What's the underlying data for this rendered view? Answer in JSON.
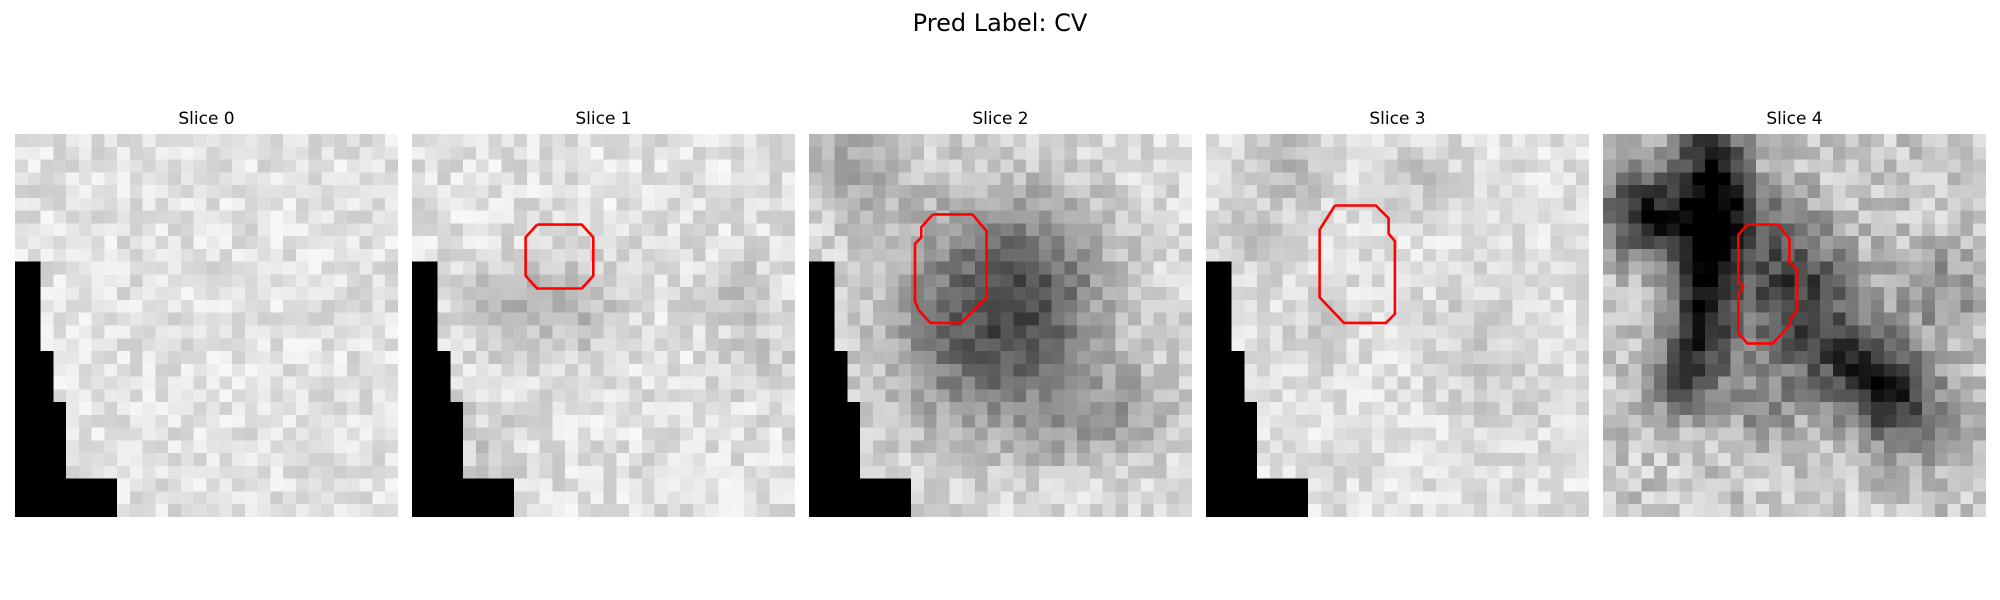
{
  "figure": {
    "title": "Pred Label: CV"
  },
  "colors": {
    "contour": "#ff0000",
    "mask": "#000000"
  },
  "panels": [
    {
      "title": "Slice 0",
      "seed": 11,
      "base": 225,
      "noise": 22,
      "blobs": [],
      "contour": [],
      "mask": [
        5,
        5,
        5,
        5,
        5,
        5,
        5,
        5,
        5,
        5,
        5,
        5,
        5,
        5,
        5,
        5,
        5,
        5,
        5,
        5,
        1,
        1,
        1,
        1,
        1,
        1,
        1,
        1,
        1,
        1,
        1,
        1,
        1,
        1,
        1,
        1,
        1,
        1,
        1,
        1,
        0,
        0,
        0,
        0,
        0,
        0,
        0,
        0,
        0,
        0,
        0,
        0,
        0,
        0,
        0,
        0,
        0,
        0,
        0,
        0,
        2,
        2,
        2,
        2,
        2,
        2,
        2,
        2,
        2,
        2,
        2,
        2,
        2,
        2,
        2,
        2,
        2,
        2,
        2,
        2,
        2,
        2,
        2,
        2,
        2,
        2,
        2,
        2,
        2,
        2,
        2,
        2,
        2,
        2,
        2,
        2,
        2,
        2,
        2,
        2,
        2,
        2,
        2,
        2,
        2,
        2,
        2,
        2,
        2,
        2,
        2,
        2,
        2,
        2,
        2,
        2,
        2,
        2,
        2,
        2,
        3,
        3,
        3,
        3,
        3,
        3,
        3,
        3,
        3,
        3,
        3,
        3,
        3,
        3,
        3,
        3,
        3,
        3,
        3,
        3,
        3,
        3,
        3,
        3,
        3,
        3,
        3,
        3,
        3,
        3,
        3,
        3,
        3,
        3,
        3,
        3,
        3,
        3,
        3,
        3,
        4,
        4,
        4,
        4,
        4,
        4,
        4,
        4,
        4,
        4,
        4,
        4,
        4,
        4,
        4,
        4,
        4,
        4,
        4,
        4,
        4,
        4,
        4,
        4,
        4,
        4,
        4,
        4,
        4,
        4,
        4,
        4,
        4,
        4,
        4,
        4,
        4,
        4,
        4,
        4
      ]
    },
    {
      "title": "Slice 1",
      "seed": 23,
      "base": 224,
      "noise": 24,
      "blobs": [
        [
          6,
          13,
          2.2,
          -35
        ],
        [
          11,
          12,
          2.2,
          -30
        ],
        [
          13,
          14,
          2.5,
          -25
        ],
        [
          25,
          12,
          2.0,
          -30
        ],
        [
          27,
          17,
          2.0,
          -20
        ],
        [
          4,
          24,
          3,
          -20
        ]
      ],
      "contour": [
        [
          9.8,
          7.1
        ],
        [
          13.3,
          7.1
        ],
        [
          14.2,
          8.1
        ],
        [
          14.2,
          11.1
        ],
        [
          13.3,
          12.1
        ],
        [
          9.8,
          12.1
        ],
        [
          8.9,
          11.1
        ],
        [
          8.9,
          8.1
        ],
        [
          9.8,
          7.1
        ]
      ]
    },
    {
      "title": "Slice 2",
      "seed": 37,
      "base": 218,
      "noise": 26,
      "blobs": [
        [
          3,
          2,
          3,
          -45
        ],
        [
          17,
          9,
          4.5,
          -50
        ],
        [
          11,
          10,
          4.5,
          -45
        ],
        [
          11,
          16,
          4.5,
          -45
        ],
        [
          17,
          15,
          4.5,
          -45
        ],
        [
          14,
          19,
          4.5,
          -40
        ],
        [
          18,
          12,
          3,
          -35
        ],
        [
          25,
          21,
          2.5,
          -50
        ],
        [
          20,
          22,
          2.5,
          -45
        ]
      ],
      "contour": [
        [
          9.7,
          6.3
        ],
        [
          12.8,
          6.3
        ],
        [
          13.9,
          7.6
        ],
        [
          13.9,
          12.8
        ],
        [
          11.9,
          14.8
        ],
        [
          9.5,
          14.8
        ],
        [
          8.6,
          13.8
        ],
        [
          8.3,
          13.1
        ],
        [
          8.3,
          8.6
        ],
        [
          8.8,
          8.1
        ],
        [
          8.8,
          7.3
        ],
        [
          9.7,
          6.3
        ]
      ]
    },
    {
      "title": "Slice 3",
      "seed": 41,
      "base": 224,
      "noise": 22,
      "blobs": [
        [
          6,
          2,
          2.5,
          -40
        ],
        [
          3,
          8,
          2,
          -25
        ],
        [
          16,
          3,
          2,
          -25
        ],
        [
          8,
          15,
          2,
          -20
        ],
        [
          20,
          15,
          2.5,
          -20
        ],
        [
          23,
          20,
          2.5,
          -20
        ]
      ],
      "contour": [
        [
          10.1,
          5.6
        ],
        [
          13.3,
          5.6
        ],
        [
          14.3,
          6.6
        ],
        [
          14.3,
          7.8
        ],
        [
          14.8,
          8.4
        ],
        [
          14.8,
          14.1
        ],
        [
          14.1,
          14.8
        ],
        [
          10.8,
          14.8
        ],
        [
          8.9,
          12.8
        ],
        [
          8.9,
          7.5
        ],
        [
          10.1,
          5.6
        ]
      ]
    },
    {
      "title": "Slice 4",
      "seed": 53,
      "base": 200,
      "noise": 34,
      "blobs": [
        [
          8,
          0,
          1.8,
          -120
        ],
        [
          8,
          3,
          1.8,
          -115
        ],
        [
          8,
          6,
          1.8,
          -115
        ],
        [
          7.6,
          9,
          1.8,
          -110
        ],
        [
          7.2,
          12,
          1.8,
          -110
        ],
        [
          7,
          15,
          1.8,
          -105
        ],
        [
          6.8,
          18,
          1.8,
          -95
        ],
        [
          2,
          5.5,
          2.5,
          -90
        ],
        [
          4,
          6,
          2.5,
          -90
        ],
        [
          11,
          6,
          2.5,
          -80
        ],
        [
          15,
          10,
          3,
          -70
        ],
        [
          13.5,
          13,
          3.5,
          -70
        ],
        [
          17,
          16,
          3,
          -65
        ],
        [
          20,
          18,
          2.5,
          -90
        ],
        [
          22,
          20,
          2.5,
          -80
        ],
        [
          26,
          12,
          2.5,
          -60
        ],
        [
          24,
          22,
          2.5,
          -70
        ],
        [
          12,
          21,
          2,
          -60
        ],
        [
          5,
          20,
          2,
          -65
        ]
      ],
      "contour": [
        [
          11.3,
          7.1
        ],
        [
          13.7,
          7.1
        ],
        [
          14.6,
          8.2
        ],
        [
          14.6,
          10.0
        ],
        [
          15.2,
          10.6
        ],
        [
          15.2,
          13.8
        ],
        [
          14.8,
          14.3
        ],
        [
          14.6,
          15.0
        ],
        [
          13.3,
          16.4
        ],
        [
          11.3,
          16.4
        ],
        [
          10.6,
          15.6
        ],
        [
          10.6,
          12.5
        ],
        [
          11.0,
          12.0
        ],
        [
          10.6,
          11.6
        ],
        [
          10.6,
          7.9
        ],
        [
          11.3,
          7.1
        ]
      ]
    }
  ]
}
